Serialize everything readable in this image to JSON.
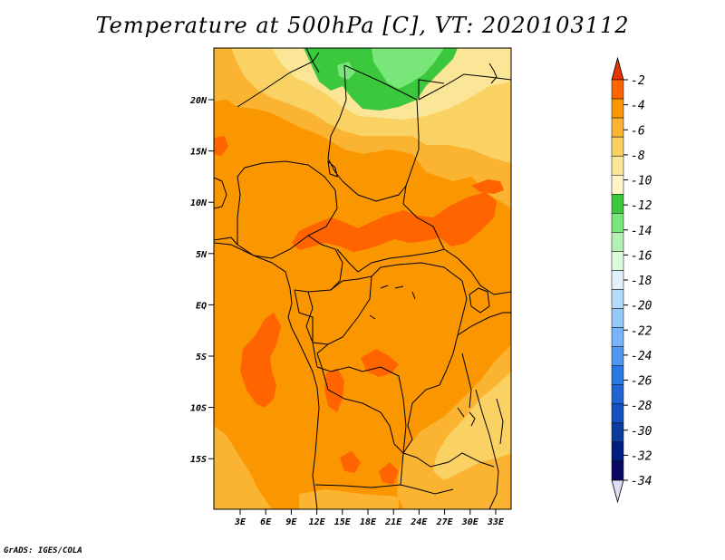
{
  "title": "Temperature at 500hPa [C], VT: 2020103112",
  "credit": "GrADS: IGES/COLA",
  "map": {
    "lat_labels": [
      "20N",
      "15N",
      "10N",
      "5N",
      "EQ",
      "5S",
      "10S",
      "15S"
    ],
    "lon_labels": [
      "3E",
      "6E",
      "9E",
      "12E",
      "15E",
      "18E",
      "21E",
      "24E",
      "27E",
      "30E",
      "33E"
    ],
    "field_colors": {
      "warm_max": "#ff6400",
      "warm": "#fa9600",
      "mid": "#fab432",
      "light": "#fad264",
      "pale": "#fae696",
      "green_light": "#78e678",
      "green": "#3cc83c",
      "border": "#000000"
    }
  },
  "colorbar": {
    "labels": [
      "-2",
      "-4",
      "-6",
      "-8",
      "-10",
      "-12",
      "-14",
      "-16",
      "-18",
      "-20",
      "-22",
      "-24",
      "-26",
      "-28",
      "-30",
      "-32",
      "-34"
    ],
    "colors": [
      "#e63200",
      "#ff6400",
      "#fa9600",
      "#fab432",
      "#fad264",
      "#fae696",
      "#fff5c8",
      "#3cc83c",
      "#78e678",
      "#b4f0b4",
      "#dcfadc",
      "#e1f0fa",
      "#b4dcfa",
      "#96c8fa",
      "#78b4fa",
      "#5096f0",
      "#2878e6",
      "#1e64d2",
      "#1450be",
      "#0a3ca0",
      "#001e82",
      "#0a0a64",
      "#dcdcf5"
    ]
  }
}
